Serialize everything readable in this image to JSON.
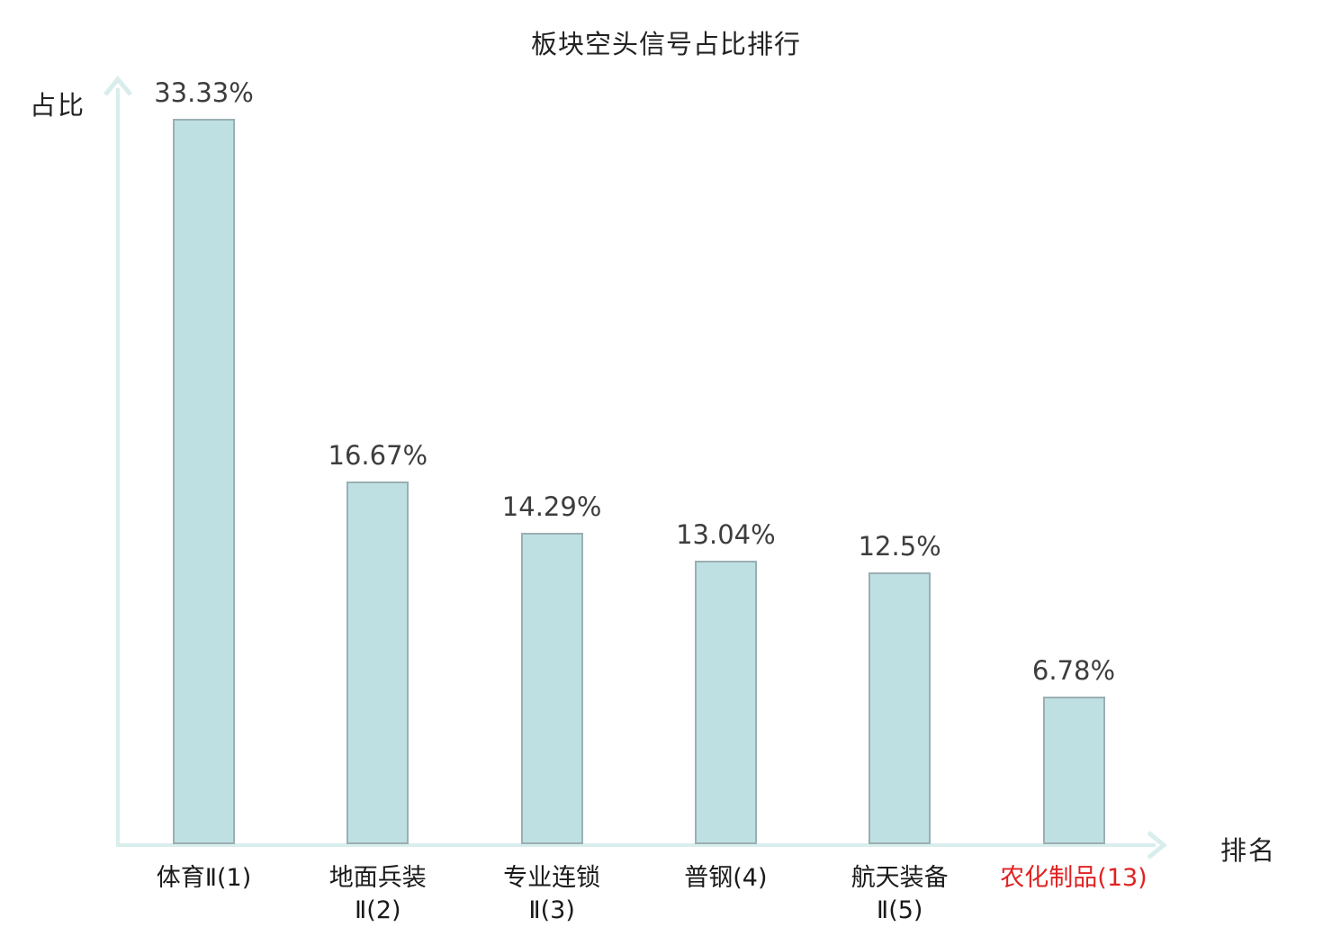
{
  "chart_data": {
    "type": "bar",
    "title": "板块空头信号占比排行",
    "xlabel": "排名",
    "ylabel": "占比",
    "categories": [
      {
        "label": "体育Ⅱ(1)",
        "lines": [
          "体育Ⅱ(1)"
        ],
        "highlight": false
      },
      {
        "label": "地面兵装Ⅱ(2)",
        "lines": [
          "地面兵装",
          "Ⅱ(2)"
        ],
        "highlight": false
      },
      {
        "label": "专业连锁Ⅱ(3)",
        "lines": [
          "专业连锁",
          "Ⅱ(3)"
        ],
        "highlight": false
      },
      {
        "label": "普钢(4)",
        "lines": [
          "普钢(4)"
        ],
        "highlight": false
      },
      {
        "label": "航天装备Ⅱ(5)",
        "lines": [
          "航天装备",
          "Ⅱ(5)"
        ],
        "highlight": false
      },
      {
        "label": "农化制品(13)",
        "lines": [
          "农化制品(13)"
        ],
        "highlight": true
      }
    ],
    "values": [
      33.33,
      16.67,
      14.29,
      13.04,
      12.5,
      6.78
    ],
    "value_labels": [
      "33.33%",
      "16.67%",
      "14.29%",
      "13.04%",
      "12.5%",
      "6.78%"
    ],
    "ylim": [
      0,
      34.5
    ],
    "grid": false,
    "legend": "none",
    "colors": {
      "bar_fill": "#bfe0e3",
      "bar_border": "#9aafb2",
      "axis": "#d9eded",
      "value_text": "#3d3d3d",
      "label_text": "#1a1a1a",
      "highlight_text": "#e02222",
      "title_text": "#222222"
    }
  }
}
